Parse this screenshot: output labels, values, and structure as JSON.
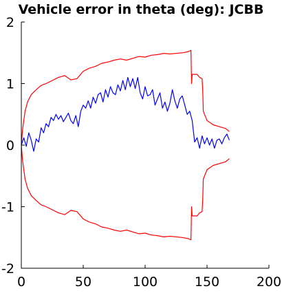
{
  "chart_data": {
    "type": "line",
    "title": "Vehicle error in theta (deg): JCBB",
    "xlabel": "",
    "ylabel": "",
    "xlim": [
      0,
      200
    ],
    "ylim": [
      -2,
      2
    ],
    "xticks": [
      0,
      50,
      100,
      150,
      200
    ],
    "yticks": [
      -2,
      -1,
      0,
      1,
      2
    ],
    "grid": false,
    "legend": "none",
    "series": [
      {
        "color": "#ff0000",
        "x": [
          0,
          1,
          2,
          3,
          5,
          8,
          12,
          16,
          20,
          25,
          30,
          35,
          40,
          45,
          50,
          55,
          60,
          65,
          70,
          75,
          80,
          85,
          90,
          95,
          100,
          105,
          110,
          115,
          120,
          125,
          130,
          135,
          137,
          137.5,
          138,
          139,
          140,
          142,
          144,
          146,
          146.5,
          147,
          150,
          155,
          160,
          165,
          168
        ],
        "values": [
          0,
          0.25,
          0.4,
          0.55,
          0.7,
          0.82,
          0.9,
          0.97,
          1.0,
          1.05,
          1.1,
          1.13,
          1.06,
          1.08,
          1.2,
          1.25,
          1.28,
          1.33,
          1.35,
          1.38,
          1.4,
          1.38,
          1.41,
          1.44,
          1.43,
          1.46,
          1.47,
          1.49,
          1.48,
          1.49,
          1.5,
          1.52,
          1.54,
          1.0,
          1.15,
          1.15,
          1.15,
          1.15,
          1.1,
          1.08,
          0.9,
          0.55,
          0.4,
          0.33,
          0.3,
          0.27,
          0.22
        ]
      },
      {
        "color": "#ff0000",
        "x": [
          0,
          1,
          2,
          3,
          5,
          8,
          12,
          16,
          20,
          25,
          30,
          35,
          40,
          45,
          50,
          55,
          60,
          65,
          70,
          75,
          80,
          85,
          90,
          95,
          100,
          105,
          110,
          115,
          120,
          125,
          130,
          135,
          137,
          137.5,
          138,
          139,
          140,
          142,
          144,
          146,
          146.5,
          147,
          150,
          155,
          160,
          165,
          168
        ],
        "values": [
          0,
          -0.25,
          -0.4,
          -0.55,
          -0.7,
          -0.82,
          -0.9,
          -0.97,
          -1.0,
          -1.05,
          -1.1,
          -1.13,
          -1.06,
          -1.08,
          -1.2,
          -1.25,
          -1.28,
          -1.33,
          -1.35,
          -1.38,
          -1.4,
          -1.38,
          -1.41,
          -1.44,
          -1.43,
          -1.46,
          -1.47,
          -1.49,
          -1.48,
          -1.49,
          -1.5,
          -1.52,
          -1.54,
          -1.0,
          -1.15,
          -1.15,
          -1.15,
          -1.15,
          -1.1,
          -1.08,
          -0.9,
          -0.55,
          -0.4,
          -0.33,
          -0.3,
          -0.27,
          -0.22
        ]
      },
      {
        "color": "#0000ff",
        "x": [
          0,
          2,
          4,
          6,
          8,
          10,
          12,
          14,
          16,
          18,
          20,
          22,
          24,
          26,
          28,
          30,
          32,
          34,
          36,
          38,
          40,
          42,
          44,
          46,
          48,
          50,
          52,
          54,
          56,
          58,
          60,
          62,
          64,
          66,
          68,
          70,
          72,
          74,
          76,
          78,
          80,
          82,
          84,
          86,
          88,
          90,
          92,
          94,
          96,
          98,
          100,
          102,
          104,
          106,
          108,
          110,
          112,
          114,
          116,
          118,
          120,
          122,
          124,
          126,
          128,
          130,
          132,
          134,
          136,
          138,
          140,
          142,
          144,
          146,
          148,
          150,
          152,
          154,
          156,
          158,
          160,
          162,
          164,
          166,
          168
        ],
        "values": [
          0.0,
          0.12,
          -0.02,
          0.2,
          0.08,
          -0.1,
          0.1,
          0.05,
          0.28,
          0.2,
          0.35,
          0.3,
          0.45,
          0.4,
          0.5,
          0.42,
          0.48,
          0.38,
          0.45,
          0.52,
          0.4,
          0.35,
          0.48,
          0.3,
          0.55,
          0.65,
          0.6,
          0.72,
          0.6,
          0.78,
          0.68,
          0.82,
          0.85,
          0.7,
          0.9,
          0.78,
          0.95,
          0.85,
          0.82,
          0.98,
          0.88,
          1.05,
          0.9,
          1.1,
          0.95,
          1.08,
          0.92,
          1.1,
          0.85,
          0.75,
          0.95,
          0.8,
          0.82,
          0.9,
          0.65,
          0.75,
          0.85,
          0.6,
          0.7,
          0.55,
          0.68,
          0.9,
          0.72,
          0.6,
          0.75,
          0.8,
          0.65,
          0.5,
          0.55,
          0.4,
          0.05,
          0.12,
          -0.05,
          0.15,
          0.02,
          0.12,
          0.0,
          0.1,
          -0.05,
          0.08,
          0.1,
          0.02,
          0.12,
          0.18,
          0.08
        ]
      }
    ]
  }
}
